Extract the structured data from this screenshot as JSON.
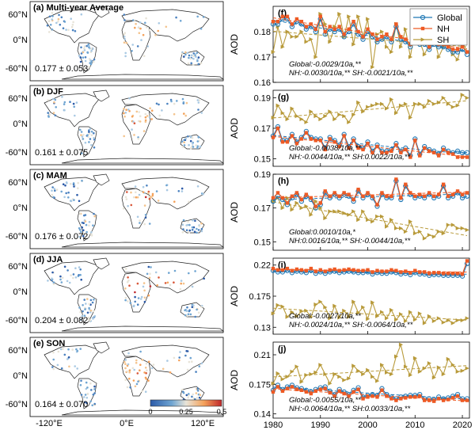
{
  "maps": [
    {
      "label": "(a) Multi-year Average",
      "stat": "0.177 ± 0.053"
    },
    {
      "label": "(b) DJF",
      "stat": "0.161 ± 0.075"
    },
    {
      "label": "(c) MAM",
      "stat": "0.176 ± 0.072"
    },
    {
      "label": "(d) JJA",
      "stat": "0.204 ± 0.082"
    },
    {
      "label": "(e) SON",
      "stat": "0.164 ± 0.070"
    }
  ],
  "map_axes": {
    "lat_ticks": [
      "60°N",
      "0°N",
      "-60°N"
    ],
    "lon_ticks": [
      "-120°E",
      "0°E",
      "120°E"
    ]
  },
  "colorbar": {
    "ticks": [
      "0",
      "0.25",
      "0.5"
    ],
    "colors": [
      "#2b5aa8",
      "#6fa5d2",
      "#e8e4d8",
      "#f4a25b",
      "#c0282b"
    ]
  },
  "legend": [
    "Global",
    "NH",
    "SH"
  ],
  "series_colors": {
    "Global": "#1f77b4",
    "NH": "#ee5a24",
    "SH": "#b89a3a"
  },
  "chart_data": [
    {
      "label": "(f)",
      "type": "line",
      "ylabel": "AOD",
      "ylim": [
        0.16,
        0.19
      ],
      "yticks": [
        "0.16",
        "0.17",
        "0.18"
      ],
      "x": [
        1980,
        1981,
        1982,
        1983,
        1984,
        1985,
        1986,
        1987,
        1988,
        1989,
        1990,
        1991,
        1992,
        1993,
        1994,
        1995,
        1996,
        1997,
        1998,
        1999,
        2000,
        2001,
        2002,
        2003,
        2004,
        2005,
        2006,
        2007,
        2008,
        2009,
        2010,
        2011,
        2012,
        2013,
        2014,
        2015,
        2016,
        2017,
        2018,
        2019,
        2020,
        2021
      ],
      "series": [
        {
          "name": "Global",
          "values": [
            0.183,
            0.183,
            0.185,
            0.185,
            0.182,
            0.184,
            0.183,
            0.181,
            0.182,
            0.18,
            0.185,
            0.179,
            0.181,
            0.18,
            0.181,
            0.178,
            0.18,
            0.183,
            0.179,
            0.177,
            0.18,
            0.178,
            0.176,
            0.177,
            0.178,
            0.176,
            0.182,
            0.177,
            0.176,
            0.174,
            0.178,
            0.175,
            0.175,
            0.173,
            0.175,
            0.174,
            0.174,
            0.173,
            0.172,
            0.172,
            0.173,
            0.171
          ]
        },
        {
          "name": "NH",
          "values": [
            0.184,
            0.184,
            0.186,
            0.186,
            0.183,
            0.185,
            0.184,
            0.182,
            0.183,
            0.181,
            0.186,
            0.18,
            0.182,
            0.181,
            0.182,
            0.179,
            0.181,
            0.184,
            0.18,
            0.178,
            0.181,
            0.179,
            0.177,
            0.178,
            0.179,
            0.177,
            0.183,
            0.178,
            0.177,
            0.175,
            0.179,
            0.176,
            0.176,
            0.174,
            0.176,
            0.175,
            0.175,
            0.174,
            0.173,
            0.173,
            0.174,
            0.172
          ]
        },
        {
          "name": "SH",
          "values": [
            0.172,
            0.182,
            0.174,
            0.18,
            0.178,
            0.178,
            0.18,
            0.176,
            0.177,
            0.17,
            0.187,
            0.183,
            0.176,
            0.182,
            0.187,
            0.178,
            0.186,
            0.175,
            0.186,
            0.178,
            0.185,
            0.166,
            0.179,
            0.18,
            0.174,
            0.172,
            0.183,
            0.174,
            0.181,
            0.17,
            0.181,
            0.176,
            0.171,
            0.175,
            0.178,
            0.17,
            0.174,
            0.177,
            0.171,
            0.169,
            0.176,
            0.172
          ]
        }
      ],
      "trend_text": [
        "Global:-0.0029/10a,**",
        "NH:-0.0030/10a,**  SH:-0.0021/10a,**"
      ]
    },
    {
      "label": "(g)",
      "type": "line",
      "ylabel": "AOD",
      "ylim": [
        0.145,
        0.195
      ],
      "yticks": [
        "0.15",
        "0.17",
        "0.19"
      ],
      "x": [
        1980,
        1981,
        1982,
        1983,
        1984,
        1985,
        1986,
        1987,
        1988,
        1989,
        1990,
        1991,
        1992,
        1993,
        1994,
        1995,
        1996,
        1997,
        1998,
        1999,
        2000,
        2001,
        2002,
        2003,
        2004,
        2005,
        2006,
        2007,
        2008,
        2009,
        2010,
        2011,
        2012,
        2013,
        2014,
        2015,
        2016,
        2017,
        2018,
        2019,
        2020,
        2021
      ],
      "series": [
        {
          "name": "Global",
          "values": [
            0.165,
            0.171,
            0.162,
            0.162,
            0.166,
            0.161,
            0.164,
            0.168,
            0.164,
            0.163,
            0.163,
            0.157,
            0.164,
            0.162,
            0.159,
            0.166,
            0.158,
            0.163,
            0.158,
            0.157,
            0.161,
            0.155,
            0.159,
            0.155,
            0.155,
            0.156,
            0.16,
            0.155,
            0.157,
            0.152,
            0.163,
            0.153,
            0.158,
            0.156,
            0.155,
            0.153,
            0.157,
            0.155,
            0.154,
            0.155,
            0.154,
            0.154
          ]
        },
        {
          "name": "NH",
          "values": [
            0.164,
            0.17,
            0.161,
            0.161,
            0.165,
            0.16,
            0.163,
            0.167,
            0.163,
            0.162,
            0.162,
            0.156,
            0.163,
            0.161,
            0.158,
            0.165,
            0.157,
            0.162,
            0.157,
            0.156,
            0.16,
            0.154,
            0.158,
            0.154,
            0.154,
            0.155,
            0.159,
            0.154,
            0.156,
            0.151,
            0.162,
            0.152,
            0.157,
            0.155,
            0.154,
            0.152,
            0.156,
            0.154,
            0.153,
            0.151,
            0.151,
            0.151
          ]
        },
        {
          "name": "SH",
          "values": [
            0.177,
            0.185,
            0.18,
            0.176,
            0.183,
            0.178,
            0.176,
            0.174,
            0.181,
            0.178,
            0.176,
            0.178,
            0.181,
            0.176,
            0.179,
            0.178,
            0.174,
            0.179,
            0.187,
            0.181,
            0.184,
            0.185,
            0.186,
            0.186,
            0.183,
            0.189,
            0.18,
            0.185,
            0.186,
            0.177,
            0.186,
            0.186,
            0.184,
            0.188,
            0.186,
            0.187,
            0.19,
            0.186,
            0.184,
            0.185,
            0.192,
            0.19
          ]
        }
      ],
      "trend_text": [
        "Global:-0.0038/10a,**",
        "NH:-0.0044/10a,**  SH:0.0022/10a,**"
      ]
    },
    {
      "label": "(h)",
      "type": "line",
      "ylabel": "AOD",
      "ylim": [
        0.145,
        0.19
      ],
      "yticks": [
        "0.15",
        "0.17",
        "0.19"
      ],
      "x": [
        1980,
        1981,
        1982,
        1983,
        1984,
        1985,
        1986,
        1987,
        1988,
        1989,
        1990,
        1991,
        1992,
        1993,
        1994,
        1995,
        1996,
        1997,
        1998,
        1999,
        2000,
        2001,
        2002,
        2003,
        2004,
        2005,
        2006,
        2007,
        2008,
        2009,
        2010,
        2011,
        2012,
        2013,
        2014,
        2015,
        2016,
        2017,
        2018,
        2019,
        2020,
        2021
      ],
      "series": [
        {
          "name": "Global",
          "values": [
            0.174,
            0.177,
            0.175,
            0.172,
            0.176,
            0.178,
            0.174,
            0.177,
            0.175,
            0.17,
            0.172,
            0.179,
            0.176,
            0.178,
            0.176,
            0.178,
            0.177,
            0.174,
            0.18,
            0.176,
            0.178,
            0.176,
            0.171,
            0.178,
            0.176,
            0.176,
            0.186,
            0.175,
            0.183,
            0.178,
            0.176,
            0.177,
            0.176,
            0.178,
            0.176,
            0.177,
            0.183,
            0.176,
            0.177,
            0.179,
            0.176,
            0.177
          ]
        },
        {
          "name": "NH",
          "values": [
            0.176,
            0.179,
            0.176,
            0.173,
            0.177,
            0.179,
            0.175,
            0.178,
            0.176,
            0.171,
            0.173,
            0.18,
            0.177,
            0.179,
            0.177,
            0.179,
            0.178,
            0.175,
            0.181,
            0.177,
            0.179,
            0.177,
            0.172,
            0.179,
            0.177,
            0.177,
            0.187,
            0.176,
            0.184,
            0.179,
            0.177,
            0.178,
            0.177,
            0.179,
            0.177,
            0.178,
            0.184,
            0.177,
            0.178,
            0.18,
            0.178,
            0.179
          ]
        },
        {
          "name": "SH",
          "values": [
            0.174,
            0.176,
            0.17,
            0.176,
            0.169,
            0.173,
            0.17,
            0.171,
            0.166,
            0.174,
            0.17,
            0.164,
            0.168,
            0.168,
            0.168,
            0.167,
            0.166,
            0.168,
            0.163,
            0.168,
            0.163,
            0.162,
            0.165,
            0.165,
            0.159,
            0.163,
            0.158,
            0.158,
            0.156,
            0.162,
            0.155,
            0.156,
            0.152,
            0.154,
            0.153,
            0.156,
            0.155,
            0.16,
            0.16,
            0.158,
            0.158,
            0.157
          ]
        }
      ],
      "trend_text": [
        "Global:0.0010/10a,*",
        "NH:0.0016/10a,**  SH:-0.0044/10a,**"
      ]
    },
    {
      "label": "(i)",
      "type": "line",
      "ylabel": "AOD",
      "ylim": [
        0.12,
        0.23
      ],
      "yticks": [
        "0.13",
        "0.175",
        "0.22"
      ],
      "x": [
        1980,
        1981,
        1982,
        1983,
        1984,
        1985,
        1986,
        1987,
        1988,
        1989,
        1990,
        1991,
        1992,
        1993,
        1994,
        1995,
        1996,
        1997,
        1998,
        1999,
        2000,
        2001,
        2002,
        2003,
        2004,
        2005,
        2006,
        2007,
        2008,
        2009,
        2010,
        2011,
        2012,
        2013,
        2014,
        2015,
        2016,
        2017,
        2018,
        2019,
        2020,
        2021
      ],
      "series": [
        {
          "name": "Global",
          "values": [
            0.212,
            0.21,
            0.21,
            0.212,
            0.209,
            0.211,
            0.21,
            0.209,
            0.212,
            0.208,
            0.21,
            0.208,
            0.21,
            0.211,
            0.209,
            0.21,
            0.211,
            0.21,
            0.209,
            0.209,
            0.21,
            0.207,
            0.209,
            0.208,
            0.208,
            0.21,
            0.209,
            0.207,
            0.208,
            0.206,
            0.209,
            0.207,
            0.207,
            0.205,
            0.206,
            0.206,
            0.205,
            0.205,
            0.205,
            0.205,
            0.204,
            0.222
          ]
        },
        {
          "name": "NH",
          "values": [
            0.215,
            0.213,
            0.213,
            0.215,
            0.212,
            0.214,
            0.213,
            0.212,
            0.215,
            0.211,
            0.213,
            0.211,
            0.213,
            0.214,
            0.212,
            0.213,
            0.214,
            0.213,
            0.212,
            0.212,
            0.213,
            0.21,
            0.212,
            0.211,
            0.211,
            0.213,
            0.212,
            0.21,
            0.211,
            0.209,
            0.212,
            0.21,
            0.21,
            0.208,
            0.209,
            0.209,
            0.208,
            0.208,
            0.208,
            0.208,
            0.207,
            0.226
          ]
        },
        {
          "name": "SH",
          "values": [
            0.15,
            0.162,
            0.16,
            0.145,
            0.152,
            0.146,
            0.153,
            0.154,
            0.145,
            0.163,
            0.167,
            0.159,
            0.143,
            0.161,
            0.144,
            0.154,
            0.145,
            0.167,
            0.151,
            0.159,
            0.142,
            0.166,
            0.146,
            0.152,
            0.143,
            0.155,
            0.141,
            0.149,
            0.139,
            0.152,
            0.141,
            0.15,
            0.136,
            0.146,
            0.139,
            0.143,
            0.137,
            0.14,
            0.136,
            0.14,
            0.14,
            0.143
          ]
        }
      ],
      "trend_text": [
        "Global:-0.0027/10a,**",
        "NH:-0.0024/10a,**  SH:-0.0064/10a,**"
      ]
    },
    {
      "label": "(j)",
      "type": "line",
      "ylabel": "AOD",
      "ylim": [
        0.135,
        0.225
      ],
      "yticks": [
        "0.14",
        "0.175",
        "0.21"
      ],
      "x": [
        1980,
        1981,
        1982,
        1983,
        1984,
        1985,
        1986,
        1987,
        1988,
        1989,
        1990,
        1991,
        1992,
        1993,
        1994,
        1995,
        1996,
        1997,
        1998,
        1999,
        2000,
        2001,
        2002,
        2003,
        2004,
        2005,
        2006,
        2007,
        2008,
        2009,
        2010,
        2011,
        2012,
        2013,
        2014,
        2015,
        2016,
        2017,
        2018,
        2019,
        2020,
        2021
      ],
      "series": [
        {
          "name": "Global",
          "values": [
            0.168,
            0.174,
            0.169,
            0.172,
            0.174,
            0.171,
            0.17,
            0.168,
            0.166,
            0.169,
            0.171,
            0.172,
            0.167,
            0.163,
            0.169,
            0.166,
            0.163,
            0.168,
            0.171,
            0.16,
            0.162,
            0.163,
            0.162,
            0.17,
            0.163,
            0.16,
            0.158,
            0.16,
            0.161,
            0.162,
            0.162,
            0.163,
            0.158,
            0.158,
            0.157,
            0.16,
            0.158,
            0.159,
            0.161,
            0.163,
            0.158,
            0.158
          ]
        },
        {
          "name": "NH",
          "values": [
            0.166,
            0.172,
            0.167,
            0.17,
            0.172,
            0.169,
            0.168,
            0.166,
            0.164,
            0.167,
            0.169,
            0.17,
            0.165,
            0.161,
            0.167,
            0.164,
            0.161,
            0.166,
            0.169,
            0.158,
            0.16,
            0.161,
            0.16,
            0.168,
            0.161,
            0.158,
            0.156,
            0.158,
            0.159,
            0.16,
            0.16,
            0.161,
            0.156,
            0.156,
            0.155,
            0.158,
            0.156,
            0.157,
            0.159,
            0.161,
            0.156,
            0.156
          ]
        },
        {
          "name": "SH",
          "values": [
            0.176,
            0.188,
            0.181,
            0.184,
            0.19,
            0.196,
            0.178,
            0.186,
            0.187,
            0.189,
            0.198,
            0.187,
            0.176,
            0.187,
            0.184,
            0.18,
            0.182,
            0.197,
            0.191,
            0.187,
            0.192,
            0.184,
            0.179,
            0.198,
            0.189,
            0.187,
            0.208,
            0.222,
            0.196,
            0.186,
            0.206,
            0.19,
            0.194,
            0.2,
            0.183,
            0.195,
            0.187,
            0.205,
            0.198,
            0.19,
            0.191,
            0.194
          ]
        }
      ],
      "trend_text": [
        "Global:-0.0055/10a,**",
        "NH:-0.0064/10a,**  SH:0.0033/10a,**"
      ]
    }
  ],
  "x_ticks": [
    "1980",
    "1990",
    "2000",
    "2010",
    "2020"
  ]
}
